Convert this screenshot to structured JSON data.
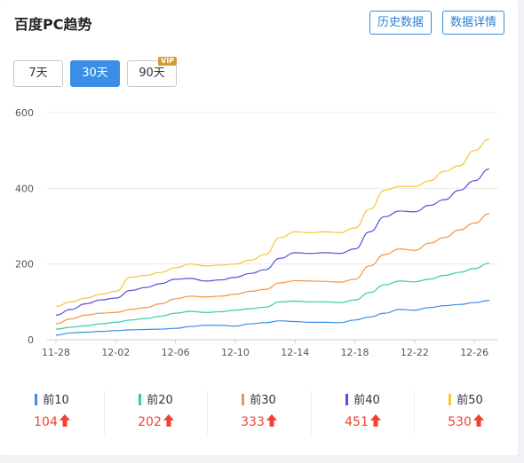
{
  "header": {
    "title": "百度PC趋势",
    "history_label": "历史数据",
    "details_label": "数据详情"
  },
  "tabs": [
    {
      "label": "7天",
      "active": false
    },
    {
      "label": "30天",
      "active": true
    },
    {
      "label": "90天",
      "active": false
    }
  ],
  "vip_badge": "VIP",
  "chart_data": {
    "type": "line",
    "ylim": [
      0,
      600
    ],
    "yticks": [
      0,
      200,
      400,
      600
    ],
    "grid": true,
    "x": [
      "11-28",
      "11-29",
      "11-30",
      "12-01",
      "12-02",
      "12-03",
      "12-04",
      "12-05",
      "12-06",
      "12-07",
      "12-08",
      "12-09",
      "12-10",
      "12-11",
      "12-12",
      "12-13",
      "12-14",
      "12-15",
      "12-16",
      "12-17",
      "12-18",
      "12-19",
      "12-20",
      "12-21",
      "12-22",
      "12-23",
      "12-24",
      "12-25",
      "12-26",
      "12-27"
    ],
    "xtick_labels": [
      "11-28",
      "12-02",
      "12-06",
      "12-10",
      "12-14",
      "12-18",
      "12-22",
      "12-26"
    ],
    "series": [
      {
        "name": "前10",
        "color": "#3a8ee6",
        "values": [
          12,
          18,
          20,
          22,
          24,
          26,
          27,
          28,
          30,
          35,
          38,
          38,
          36,
          42,
          45,
          50,
          48,
          46,
          46,
          45,
          52,
          60,
          70,
          80,
          78,
          85,
          90,
          93,
          98,
          104
        ]
      },
      {
        "name": "前20",
        "color": "#36c9a6",
        "values": [
          28,
          33,
          37,
          42,
          46,
          52,
          56,
          62,
          70,
          75,
          72,
          74,
          78,
          82,
          86,
          100,
          102,
          100,
          100,
          98,
          105,
          125,
          145,
          155,
          153,
          160,
          170,
          178,
          188,
          202
        ]
      },
      {
        "name": "前30",
        "color": "#f5923e",
        "values": [
          42,
          55,
          65,
          70,
          72,
          80,
          85,
          95,
          108,
          115,
          113,
          115,
          120,
          128,
          133,
          150,
          156,
          155,
          154,
          152,
          160,
          195,
          225,
          240,
          236,
          255,
          270,
          290,
          308,
          333
        ]
      },
      {
        "name": "前40",
        "color": "#5b4ddb",
        "values": [
          65,
          80,
          95,
          105,
          110,
          130,
          138,
          148,
          160,
          162,
          155,
          158,
          165,
          175,
          185,
          215,
          230,
          228,
          230,
          228,
          240,
          285,
          325,
          340,
          338,
          355,
          370,
          395,
          420,
          451
        ]
      },
      {
        "name": "前50",
        "color": "#f7c437",
        "values": [
          88,
          100,
          110,
          120,
          128,
          165,
          170,
          178,
          190,
          200,
          195,
          197,
          200,
          210,
          225,
          270,
          285,
          283,
          285,
          283,
          295,
          345,
          395,
          405,
          405,
          420,
          445,
          460,
          500,
          530
        ]
      }
    ]
  },
  "stats": [
    {
      "label": "前10",
      "value": "104",
      "color": "#3a8ee6"
    },
    {
      "label": "前20",
      "value": "202",
      "color": "#36c9a6"
    },
    {
      "label": "前30",
      "value": "333",
      "color": "#f5923e"
    },
    {
      "label": "前40",
      "value": "451",
      "color": "#5b4ddb"
    },
    {
      "label": "前50",
      "value": "530",
      "color": "#f7c437"
    }
  ]
}
